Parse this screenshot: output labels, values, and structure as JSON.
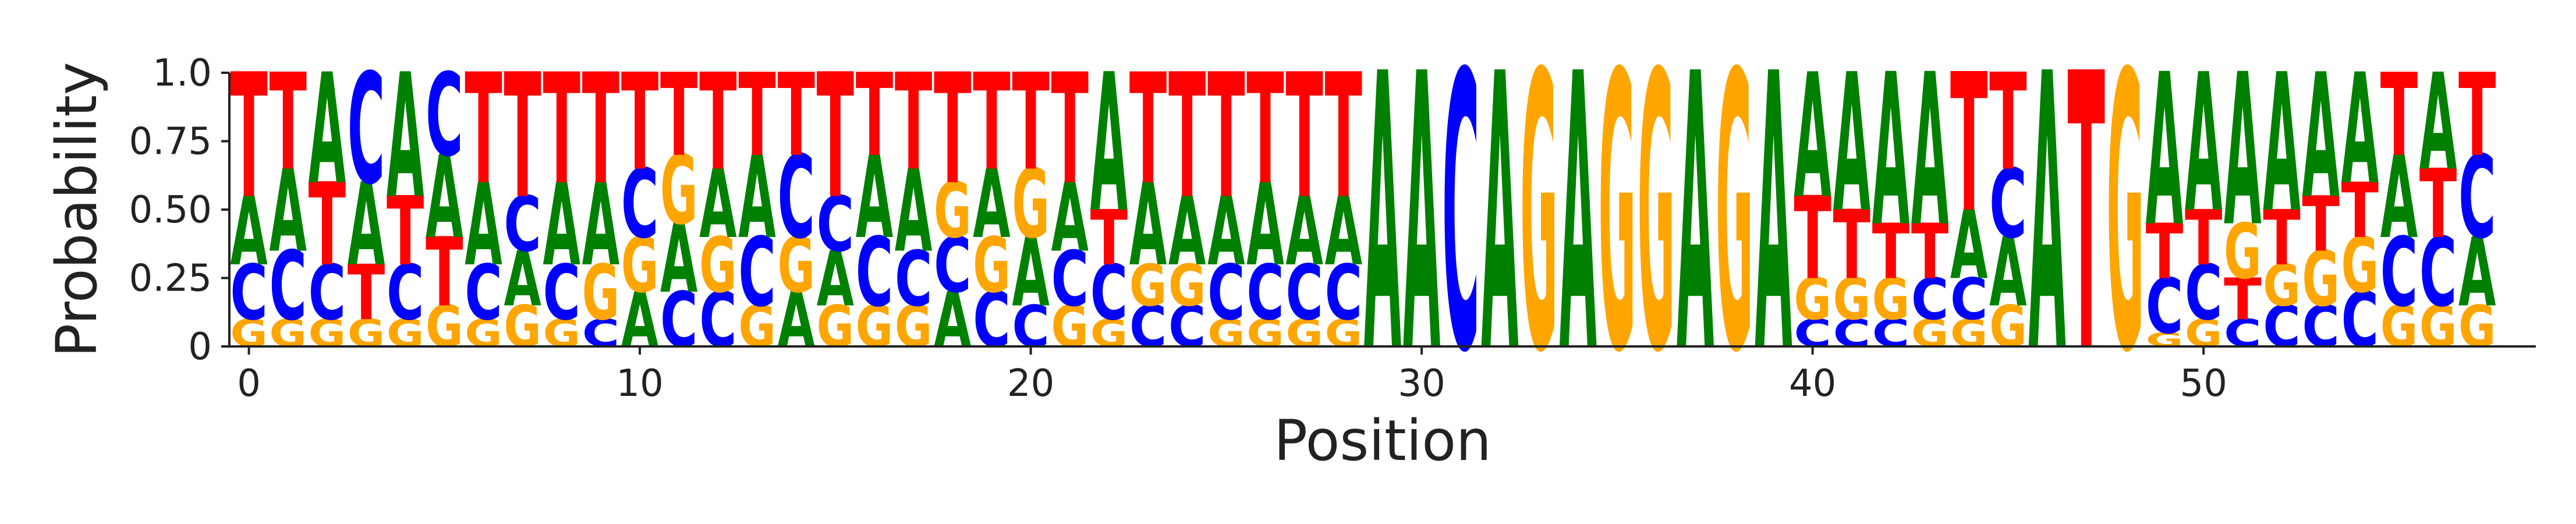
{
  "chart_data": {
    "type": "sequence-logo",
    "title": "",
    "xlabel": "Position",
    "ylabel": "Probability",
    "ylim": [
      0,
      1
    ],
    "yticks": [
      0,
      0.25,
      0.5,
      0.75,
      1
    ],
    "ytick_labels": [
      "0",
      "0.25",
      "0.50",
      "0.75",
      "1.0"
    ],
    "xlim": [
      -0.5,
      58.5
    ],
    "xticks": [
      0,
      10,
      20,
      30,
      40,
      50
    ],
    "xtick_labels": [
      "0",
      "10",
      "20",
      "30",
      "40",
      "50"
    ],
    "grid": false,
    "colors": {
      "A": "#008000",
      "C": "#0000ff",
      "G": "#ffa500",
      "T": "#ff0000"
    },
    "positions": [
      {
        "pos": 0,
        "A": 0.25,
        "C": 0.2,
        "G": 0.1,
        "T": 0.45
      },
      {
        "pos": 1,
        "A": 0.3,
        "C": 0.25,
        "G": 0.1,
        "T": 0.35
      },
      {
        "pos": 2,
        "A": 0.4,
        "C": 0.2,
        "G": 0.1,
        "T": 0.3
      },
      {
        "pos": 3,
        "A": 0.3,
        "C": 0.4,
        "G": 0.1,
        "T": 0.2
      },
      {
        "pos": 4,
        "A": 0.45,
        "C": 0.2,
        "G": 0.1,
        "T": 0.25
      },
      {
        "pos": 5,
        "A": 0.3,
        "C": 0.3,
        "G": 0.15,
        "T": 0.25
      },
      {
        "pos": 6,
        "A": 0.3,
        "C": 0.2,
        "G": 0.1,
        "T": 0.4
      },
      {
        "pos": 7,
        "A": 0.2,
        "C": 0.2,
        "G": 0.15,
        "T": 0.45
      },
      {
        "pos": 8,
        "A": 0.3,
        "C": 0.2,
        "G": 0.1,
        "T": 0.4
      },
      {
        "pos": 9,
        "A": 0.3,
        "C": 0.1,
        "G": 0.2,
        "T": 0.4
      },
      {
        "pos": 10,
        "A": 0.2,
        "C": 0.25,
        "G": 0.2,
        "T": 0.35
      },
      {
        "pos": 11,
        "A": 0.25,
        "C": 0.2,
        "G": 0.25,
        "T": 0.3
      },
      {
        "pos": 12,
        "A": 0.25,
        "C": 0.2,
        "G": 0.2,
        "T": 0.35
      },
      {
        "pos": 13,
        "A": 0.3,
        "C": 0.25,
        "G": 0.15,
        "T": 0.3
      },
      {
        "pos": 14,
        "A": 0.2,
        "C": 0.3,
        "G": 0.2,
        "T": 0.3
      },
      {
        "pos": 15,
        "A": 0.2,
        "C": 0.2,
        "G": 0.15,
        "T": 0.45
      },
      {
        "pos": 16,
        "A": 0.3,
        "C": 0.25,
        "G": 0.15,
        "T": 0.3
      },
      {
        "pos": 17,
        "A": 0.3,
        "C": 0.2,
        "G": 0.15,
        "T": 0.35
      },
      {
        "pos": 18,
        "A": 0.2,
        "C": 0.2,
        "G": 0.2,
        "T": 0.4
      },
      {
        "pos": 19,
        "A": 0.25,
        "C": 0.2,
        "G": 0.2,
        "T": 0.35
      },
      {
        "pos": 20,
        "A": 0.25,
        "C": 0.15,
        "G": 0.25,
        "T": 0.35
      },
      {
        "pos": 21,
        "A": 0.25,
        "C": 0.2,
        "G": 0.15,
        "T": 0.4
      },
      {
        "pos": 22,
        "A": 0.5,
        "C": 0.2,
        "G": 0.1,
        "T": 0.2
      },
      {
        "pos": 23,
        "A": 0.3,
        "C": 0.15,
        "G": 0.15,
        "T": 0.4
      },
      {
        "pos": 24,
        "A": 0.25,
        "C": 0.15,
        "G": 0.15,
        "T": 0.45
      },
      {
        "pos": 25,
        "A": 0.25,
        "C": 0.2,
        "G": 0.1,
        "T": 0.45
      },
      {
        "pos": 26,
        "A": 0.3,
        "C": 0.2,
        "G": 0.1,
        "T": 0.4
      },
      {
        "pos": 27,
        "A": 0.25,
        "C": 0.2,
        "G": 0.1,
        "T": 0.45
      },
      {
        "pos": 28,
        "A": 0.25,
        "C": 0.2,
        "G": 0.1,
        "T": 0.45
      },
      {
        "pos": 29,
        "A": 1.0,
        "C": 0.0,
        "G": 0.0,
        "T": 0.0
      },
      {
        "pos": 30,
        "A": 1.0,
        "C": 0.0,
        "G": 0.0,
        "T": 0.0
      },
      {
        "pos": 31,
        "A": 0.0,
        "C": 1.0,
        "G": 0.0,
        "T": 0.0
      },
      {
        "pos": 32,
        "A": 1.0,
        "C": 0.0,
        "G": 0.0,
        "T": 0.0
      },
      {
        "pos": 33,
        "A": 0.0,
        "C": 0.0,
        "G": 1.0,
        "T": 0.0
      },
      {
        "pos": 34,
        "A": 1.0,
        "C": 0.0,
        "G": 0.0,
        "T": 0.0
      },
      {
        "pos": 35,
        "A": 0.0,
        "C": 0.0,
        "G": 1.0,
        "T": 0.0
      },
      {
        "pos": 36,
        "A": 0.0,
        "C": 0.0,
        "G": 1.0,
        "T": 0.0
      },
      {
        "pos": 37,
        "A": 1.0,
        "C": 0.0,
        "G": 0.0,
        "T": 0.0
      },
      {
        "pos": 38,
        "A": 0.0,
        "C": 0.0,
        "G": 1.0,
        "T": 0.0
      },
      {
        "pos": 39,
        "A": 1.0,
        "C": 0.0,
        "G": 0.0,
        "T": 0.0
      },
      {
        "pos": 40,
        "A": 0.45,
        "C": 0.1,
        "G": 0.15,
        "T": 0.3
      },
      {
        "pos": 41,
        "A": 0.5,
        "C": 0.1,
        "G": 0.15,
        "T": 0.25
      },
      {
        "pos": 42,
        "A": 0.55,
        "C": 0.1,
        "G": 0.15,
        "T": 0.2
      },
      {
        "pos": 43,
        "A": 0.55,
        "C": 0.15,
        "G": 0.1,
        "T": 0.2
      },
      {
        "pos": 44,
        "A": 0.25,
        "C": 0.15,
        "G": 0.1,
        "T": 0.5
      },
      {
        "pos": 45,
        "A": 0.25,
        "C": 0.25,
        "G": 0.15,
        "T": 0.35
      },
      {
        "pos": 46,
        "A": 1.0,
        "C": 0.0,
        "G": 0.0,
        "T": 0.0
      },
      {
        "pos": 47,
        "A": 0.0,
        "C": 0.0,
        "G": 0.0,
        "T": 1.0
      },
      {
        "pos": 48,
        "A": 0.0,
        "C": 0.0,
        "G": 1.0,
        "T": 0.0
      },
      {
        "pos": 49,
        "A": 0.55,
        "C": 0.2,
        "G": 0.05,
        "T": 0.2
      },
      {
        "pos": 50,
        "A": 0.5,
        "C": 0.2,
        "G": 0.1,
        "T": 0.2
      },
      {
        "pos": 51,
        "A": 0.55,
        "C": 0.1,
        "G": 0.2,
        "T": 0.15
      },
      {
        "pos": 52,
        "A": 0.5,
        "C": 0.15,
        "G": 0.15,
        "T": 0.2
      },
      {
        "pos": 53,
        "A": 0.45,
        "C": 0.15,
        "G": 0.2,
        "T": 0.2
      },
      {
        "pos": 54,
        "A": 0.4,
        "C": 0.2,
        "G": 0.2,
        "T": 0.2
      },
      {
        "pos": 55,
        "A": 0.3,
        "C": 0.25,
        "G": 0.15,
        "T": 0.3
      },
      {
        "pos": 56,
        "A": 0.35,
        "C": 0.25,
        "G": 0.15,
        "T": 0.25
      },
      {
        "pos": 57,
        "A": 0.25,
        "C": 0.3,
        "G": 0.15,
        "T": 0.3
      }
    ]
  }
}
